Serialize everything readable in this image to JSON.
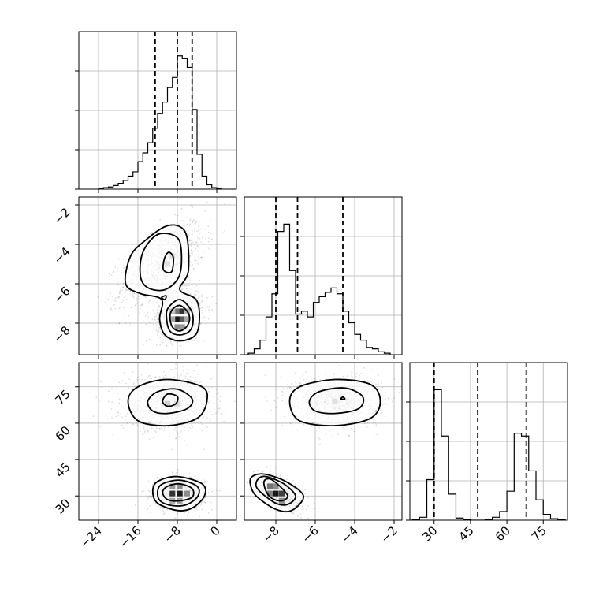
{
  "chart_data": {
    "type": "corner",
    "parameters": [
      {
        "range": [
          -28,
          4
        ],
        "ticks": [
          -24,
          -16,
          -8,
          0
        ],
        "tick_labels": [
          "−24",
          "−16",
          "−8",
          "0"
        ],
        "quantiles": [
          -12.5,
          -8,
          -5
        ]
      },
      {
        "range": [
          -9.6,
          -1.6
        ],
        "ticks": [
          -8,
          -6,
          -4,
          -2
        ],
        "tick_labels": [
          "−8",
          "−6",
          "−4",
          "−2"
        ],
        "quantiles": [
          -8,
          -6.9,
          -4.6
        ]
      },
      {
        "range": [
          20,
          85
        ],
        "ticks": [
          30,
          45,
          60,
          75
        ],
        "tick_labels": [
          "30",
          "45",
          "60",
          "75"
        ],
        "quantiles": [
          30,
          48,
          68
        ]
      }
    ],
    "histograms": [
      {
        "param": 0,
        "bin_edges": [
          -24,
          -23,
          -22,
          -21,
          -20,
          -19,
          -18,
          -17,
          -16,
          -15,
          -14,
          -13,
          -12,
          -11,
          -10,
          -9,
          -8,
          -7,
          -6,
          -5,
          -4,
          -3,
          -2,
          -1,
          0,
          1
        ],
        "counts": [
          0.005,
          0.01,
          0.015,
          0.025,
          0.04,
          0.06,
          0.09,
          0.12,
          0.19,
          0.25,
          0.32,
          0.42,
          0.52,
          0.6,
          0.7,
          0.77,
          0.92,
          0.9,
          0.84,
          0.55,
          0.24,
          0.09,
          0.03,
          0.01,
          0.005
        ]
      },
      {
        "param": 1,
        "bin_edges": [
          -9.4,
          -9.1,
          -8.8,
          -8.5,
          -8.2,
          -7.9,
          -7.6,
          -7.3,
          -7.0,
          -6.7,
          -6.4,
          -6.1,
          -5.8,
          -5.5,
          -5.2,
          -4.9,
          -4.6,
          -4.3,
          -4.0,
          -3.7,
          -3.4,
          -3.1,
          -2.8,
          -2.5,
          -2.2
        ],
        "counts": [
          0.01,
          0.04,
          0.1,
          0.26,
          0.42,
          0.85,
          0.9,
          0.58,
          0.28,
          0.3,
          0.26,
          0.36,
          0.4,
          0.43,
          0.46,
          0.42,
          0.3,
          0.22,
          0.14,
          0.1,
          0.05,
          0.04,
          0.02,
          0.01
        ]
      },
      {
        "param": 2,
        "bin_edges": [
          21,
          24,
          27,
          30,
          33,
          36,
          39,
          42,
          45,
          48,
          51,
          54,
          57,
          60,
          63,
          66,
          69,
          72,
          75,
          78,
          81,
          84
        ],
        "counts": [
          0.005,
          0.02,
          0.28,
          0.9,
          0.58,
          0.18,
          0.015,
          0.003,
          0,
          0,
          0.003,
          0.02,
          0.06,
          0.2,
          0.6,
          0.58,
          0.34,
          0.14,
          0.04,
          0.01,
          0.003
        ]
      }
    ],
    "scatter_pairs": [
      {
        "x_param": 0,
        "y_param": 1,
        "clusters": [
          {
            "cx": -11,
            "cy": -5.0,
            "sx": 4.2,
            "sy": 1.1,
            "rho": 0.55
          },
          {
            "cx": -7.5,
            "cy": -7.6,
            "sx": 2.3,
            "sy": 0.55,
            "rho": 0.2
          }
        ],
        "contours": [
          [
            [
              -18.5,
              -6.0
            ],
            [
              -17.5,
              -4.6
            ],
            [
              -14.5,
              -3.8
            ],
            [
              -10.5,
              -3.1
            ],
            [
              -7.5,
              -3.1
            ],
            [
              -6,
              -3.7
            ],
            [
              -5.8,
              -5.4
            ],
            [
              -7.5,
              -6.3
            ],
            [
              -4.2,
              -6.8
            ],
            [
              -3.5,
              -7.7
            ],
            [
              -4.3,
              -8.6
            ],
            [
              -7.5,
              -8.9
            ],
            [
              -10.5,
              -8.6
            ],
            [
              -11.6,
              -7.8
            ],
            [
              -11.2,
              -6.8
            ],
            [
              -15.5,
              -6.5
            ],
            [
              -18.5,
              -6.0
            ]
          ],
          [
            [
              -15.5,
              -5.6
            ],
            [
              -15,
              -4.4
            ],
            [
              -12,
              -3.5
            ],
            [
              -8.3,
              -3.6
            ],
            [
              -7.2,
              -4.3
            ],
            [
              -7.6,
              -5.6
            ],
            [
              -10.5,
              -6.3
            ],
            [
              -14,
              -6.2
            ],
            [
              -15.5,
              -5.6
            ]
          ],
          [
            [
              -10.8,
              -5.3
            ],
            [
              -10.6,
              -4.7
            ],
            [
              -9.7,
              -4.4
            ],
            [
              -8.8,
              -4.7
            ],
            [
              -9.2,
              -5.4
            ],
            [
              -10.8,
              -5.3
            ]
          ],
          [
            [
              -10.2,
              -7.7
            ],
            [
              -9.8,
              -7.2
            ],
            [
              -7.5,
              -6.8
            ],
            [
              -5.3,
              -7.3
            ],
            [
              -4.8,
              -7.9
            ],
            [
              -5.5,
              -8.4
            ],
            [
              -7.5,
              -8.6
            ],
            [
              -9.5,
              -8.4
            ],
            [
              -10.2,
              -7.7
            ]
          ],
          [
            [
              -9.5,
              -7.7
            ],
            [
              -9,
              -7.3
            ],
            [
              -7.5,
              -7.1
            ],
            [
              -6,
              -7.4
            ],
            [
              -5.5,
              -7.8
            ],
            [
              -6.2,
              -8.2
            ],
            [
              -7.6,
              -8.4
            ],
            [
              -9,
              -8.2
            ],
            [
              -9.5,
              -7.7
            ]
          ],
          [
            [
              -11.2,
              -6.7
            ],
            [
              -10.3,
              -6.6
            ],
            [
              -10.5,
              -6.8
            ],
            [
              -11.2,
              -6.7
            ]
          ]
        ],
        "dense_cells": [
          [
            -8,
            -7.4,
            0.55
          ],
          [
            -7,
            -7.4,
            0.8
          ],
          [
            -8,
            -7.8,
            0.9
          ],
          [
            -7,
            -7.8,
            0.65
          ],
          [
            -9,
            -7.8,
            0.35
          ],
          [
            -6,
            -7.8,
            0.35
          ],
          [
            -8,
            -8.2,
            0.45
          ],
          [
            -7,
            -8.2,
            0.4
          ],
          [
            -6,
            -7.4,
            0.3
          ],
          [
            -9,
            -7.4,
            0.25
          ],
          [
            -10,
            -5,
            0.12
          ],
          [
            -9,
            -4.6,
            0.12
          ]
        ]
      },
      {
        "x_param": 0,
        "y_param": 2,
        "clusters": [
          {
            "cx": -10,
            "cy": 68,
            "sx": 4.5,
            "sy": 5.5,
            "rho": 0.0
          },
          {
            "cx": -7.5,
            "cy": 31,
            "sx": 2.5,
            "sy": 3.2,
            "rho": 0.0
          }
        ],
        "contours": [
          [
            [
              -18,
              69
            ],
            [
              -16,
              75
            ],
            [
              -10,
              78
            ],
            [
              -3,
              75
            ],
            [
              -2,
              69
            ],
            [
              -4,
              62
            ],
            [
              -10,
              59
            ],
            [
              -16,
              61
            ],
            [
              -18,
              69
            ]
          ],
          [
            [
              -14,
              69
            ],
            [
              -12,
              73
            ],
            [
              -8,
              74
            ],
            [
              -5,
              70
            ],
            [
              -6,
              66
            ],
            [
              -10,
              64
            ],
            [
              -13,
              65
            ],
            [
              -14,
              69
            ]
          ],
          [
            [
              -11,
              69
            ],
            [
              -10,
              72
            ],
            [
              -8,
              71
            ],
            [
              -8.3,
              68
            ],
            [
              -10,
              67
            ],
            [
              -11,
              69
            ]
          ],
          [
            [
              -13,
              32
            ],
            [
              -12,
              36
            ],
            [
              -8,
              38
            ],
            [
              -3,
              35
            ],
            [
              -2.5,
              30
            ],
            [
              -5,
              25
            ],
            [
              -8,
              24
            ],
            [
              -12,
              27
            ],
            [
              -13,
              32
            ]
          ],
          [
            [
              -12,
              32
            ],
            [
              -11,
              35
            ],
            [
              -7.5,
              36.5
            ],
            [
              -4,
              34
            ],
            [
              -3.8,
              30
            ],
            [
              -6,
              26.5
            ],
            [
              -9,
              26
            ],
            [
              -11.5,
              28
            ],
            [
              -12,
              32
            ]
          ],
          [
            [
              -11,
              31.5
            ],
            [
              -10,
              34
            ],
            [
              -7.5,
              35
            ],
            [
              -5,
              33
            ],
            [
              -5,
              29.5
            ],
            [
              -7.5,
              28
            ],
            [
              -10,
              28.5
            ],
            [
              -11,
              31.5
            ]
          ]
        ],
        "dense_cells": [
          [
            -9,
            31,
            0.8
          ],
          [
            -7.5,
            31,
            0.9
          ],
          [
            -6,
            31,
            0.45
          ],
          [
            -9,
            34,
            0.4
          ],
          [
            -7.5,
            34,
            0.45
          ],
          [
            -9,
            28,
            0.35
          ],
          [
            -7.5,
            28,
            0.4
          ],
          [
            -10,
            68,
            0.18
          ],
          [
            -8,
            68,
            0.15
          ]
        ]
      },
      {
        "x_param": 1,
        "y_param": 2,
        "clusters": [
          {
            "cx": -5.0,
            "cy": 69,
            "sx": 1.1,
            "sy": 5,
            "rho": 0.0
          },
          {
            "cx": -7.8,
            "cy": 31,
            "sx": 0.55,
            "sy": 3.2,
            "rho": -0.55
          }
        ],
        "contours": [
          [
            [
              -7.3,
              69
            ],
            [
              -6.8,
              75
            ],
            [
              -5,
              78
            ],
            [
              -3.2,
              76
            ],
            [
              -2.7,
              69
            ],
            [
              -3.2,
              62
            ],
            [
              -5,
              59
            ],
            [
              -6.8,
              61
            ],
            [
              -7.3,
              69
            ]
          ],
          [
            [
              -6.3,
              69
            ],
            [
              -5.8,
              73
            ],
            [
              -4.5,
              74.5
            ],
            [
              -3.6,
              71
            ],
            [
              -3.8,
              66
            ],
            [
              -5,
              64
            ],
            [
              -6,
              65
            ],
            [
              -6.3,
              69
            ]
          ],
          [
            [
              -4.7,
              70
            ],
            [
              -4.6,
              70.8
            ],
            [
              -4.5,
              70
            ],
            [
              -4.7,
              70
            ]
          ],
          [
            [
              -9.2,
              38
            ],
            [
              -8.6,
              39
            ],
            [
              -7.5,
              36
            ],
            [
              -6.6,
              30
            ],
            [
              -7.2,
              24
            ],
            [
              -8,
              24.5
            ],
            [
              -9,
              30
            ],
            [
              -9.3,
              35
            ],
            [
              -9.2,
              38
            ]
          ],
          [
            [
              -8.9,
              37
            ],
            [
              -8.5,
              38
            ],
            [
              -7.6,
              35
            ],
            [
              -7,
              30
            ],
            [
              -7.4,
              26.5
            ],
            [
              -8,
              27
            ],
            [
              -8.7,
              31
            ],
            [
              -9,
              34
            ],
            [
              -8.9,
              37
            ]
          ],
          [
            [
              -8.6,
              36
            ],
            [
              -8.3,
              37
            ],
            [
              -7.8,
              34
            ],
            [
              -7.4,
              30
            ],
            [
              -7.7,
              28
            ],
            [
              -8.2,
              29
            ],
            [
              -8.5,
              32
            ],
            [
              -8.6,
              36
            ]
          ]
        ],
        "dense_cells": [
          [
            -8.3,
            34,
            0.55
          ],
          [
            -8.0,
            31,
            0.9
          ],
          [
            -7.7,
            31,
            0.75
          ],
          [
            -8.3,
            31,
            0.5
          ],
          [
            -7.7,
            28,
            0.45
          ],
          [
            -8.0,
            34,
            0.45
          ],
          [
            -5,
            69,
            0.12
          ]
        ]
      }
    ],
    "grid": true
  }
}
